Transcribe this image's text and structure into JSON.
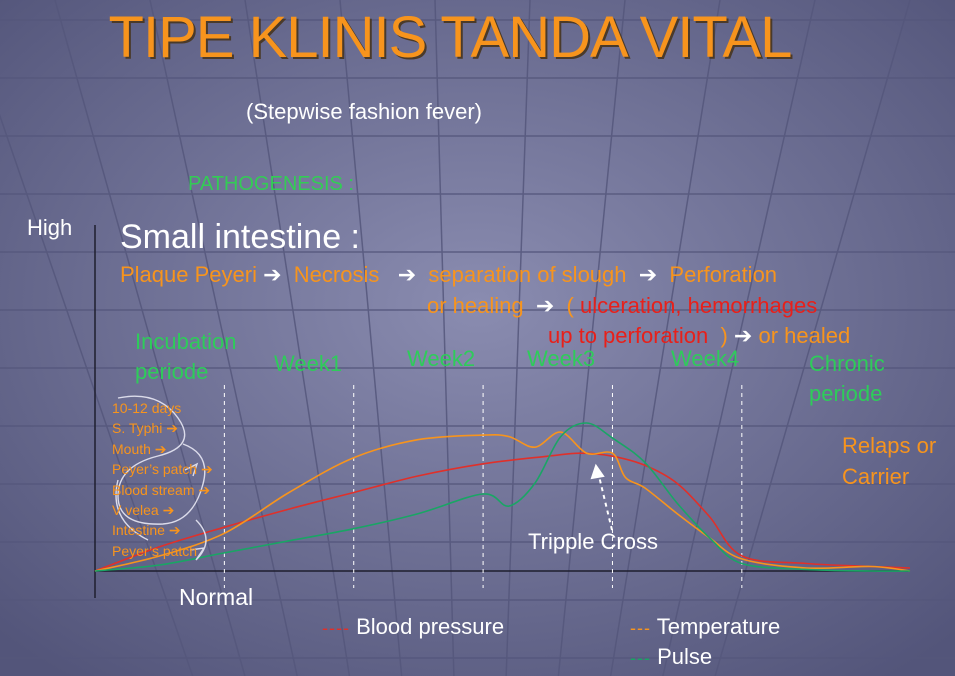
{
  "slide": {
    "title": "TIPE KLINIS TANDA VITAL",
    "subtitle": "(Stepwise fashion fever)",
    "pathogenesis_label": "PATHOGENESIS :",
    "small_intestine_title": "Small intestine :",
    "pathway": {
      "plaque": "Plaque Peyeri",
      "necrosis": "Necrosis",
      "separation": "separation of slough",
      "perforation": "Perforation",
      "or_healing": "or healing",
      "open_paren": "(",
      "ulceration": "ulceration, hemorrhages",
      "up_to": "up to perforation",
      "close_paren": ")",
      "or_healed": "or healed",
      "arrow": "➔"
    },
    "incubation_steps": [
      "10-12 days",
      "S. Typhi ➔",
      "Mouth ➔",
      "Peyer’s patch ➔",
      "Blood stream ➔",
      "V velea ➔",
      "Intestine ➔",
      "Peyer’s patch"
    ],
    "relaps_label": [
      "Relaps or",
      "Carrier"
    ],
    "tripple_cross_label": "Tripple Cross"
  },
  "colors": {
    "title": "#f7941d",
    "temperature": "#f7941d",
    "blood_pressure": "#e0302a",
    "pulse": "#1aa565",
    "stage_labels": "#2ecc5a",
    "background": "#6e6f94"
  },
  "chart_data": {
    "type": "line",
    "y_axis_labels": {
      "top": "High",
      "bottom": "Normal"
    },
    "stages": [
      {
        "name": "Incubation periode",
        "lines": [
          "Incubation",
          "periode"
        ]
      },
      {
        "name": "Week1",
        "lines": [
          "Week1"
        ]
      },
      {
        "name": "Week2",
        "lines": [
          "Week2"
        ]
      },
      {
        "name": "Week3",
        "lines": [
          "Week3"
        ]
      },
      {
        "name": "Week4",
        "lines": [
          "Week4"
        ]
      },
      {
        "name": "Chronic periode",
        "lines": [
          "Chronic",
          "periode"
        ]
      }
    ],
    "stage_boundaries": [
      1,
      2,
      3,
      4,
      5
    ],
    "xlim": [
      0,
      6.3
    ],
    "ylim": [
      0,
      1
    ],
    "series": [
      {
        "name": "Blood pressure",
        "marker": "----",
        "color": "#e0302a",
        "x": [
          0.0,
          0.5,
          1.0,
          1.5,
          2.0,
          2.5,
          3.0,
          3.5,
          3.75,
          4.0,
          4.25,
          4.5,
          4.75,
          5.0,
          5.5,
          6.0,
          6.3
        ],
        "y": [
          0.0,
          0.16,
          0.29,
          0.41,
          0.52,
          0.63,
          0.71,
          0.76,
          0.78,
          0.76,
          0.7,
          0.58,
          0.36,
          0.1,
          0.05,
          0.03,
          0.02
        ]
      },
      {
        "name": "Temperature",
        "marker": "---",
        "color": "#f7941d",
        "x": [
          0.0,
          0.5,
          1.0,
          1.5,
          2.0,
          2.5,
          3.0,
          3.2,
          3.4,
          3.6,
          3.8,
          4.0,
          4.1,
          4.25,
          4.5,
          4.75,
          5.0,
          5.5,
          6.0,
          6.3
        ],
        "y": [
          0.0,
          0.1,
          0.25,
          0.52,
          0.75,
          0.87,
          0.9,
          0.89,
          0.82,
          0.92,
          0.78,
          0.78,
          0.62,
          0.55,
          0.38,
          0.22,
          0.08,
          0.02,
          0.03,
          0.0
        ]
      },
      {
        "name": "Pulse",
        "marker": "---",
        "color": "#1aa565",
        "x": [
          0.0,
          0.5,
          1.0,
          1.5,
          2.0,
          2.5,
          3.0,
          3.2,
          3.4,
          3.6,
          3.8,
          4.0,
          4.25,
          4.5,
          4.75,
          5.0,
          5.5,
          6.0,
          6.3
        ],
        "y": [
          0.0,
          0.04,
          0.12,
          0.2,
          0.28,
          0.38,
          0.51,
          0.43,
          0.58,
          0.89,
          0.98,
          0.88,
          0.72,
          0.45,
          0.22,
          0.05,
          0.01,
          0.0,
          0.0
        ]
      }
    ],
    "grid": false,
    "legend_position": "bottom"
  }
}
